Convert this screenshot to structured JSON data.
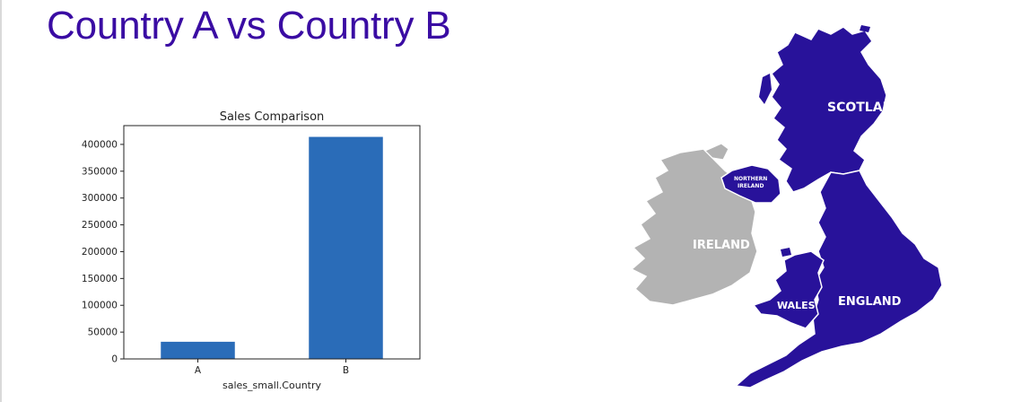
{
  "slide": {
    "title": "Country A vs Country B"
  },
  "chart_data": {
    "type": "bar",
    "title": "Sales Comparison",
    "categories": [
      "A",
      "B"
    ],
    "values": [
      32000,
      414000
    ],
    "xlabel": "sales_small.Country",
    "ylabel": "",
    "ylim": [
      0,
      435000
    ],
    "yticks": [
      0,
      50000,
      100000,
      150000,
      200000,
      250000,
      300000,
      350000,
      400000
    ],
    "bar_color": "#2a6cb8",
    "grid": false,
    "legend": "none"
  },
  "map": {
    "labels": {
      "scotland": "SCOTLAND",
      "northern_ireland_line1": "NORTHERN",
      "northern_ireland_line2": "IRELAND",
      "ireland": "IRELAND",
      "wales": "WALES",
      "england": "ENGLAND"
    },
    "colors": {
      "uk": "#28129a",
      "ireland": "#b3b3b3",
      "label": "#ffffff"
    }
  }
}
